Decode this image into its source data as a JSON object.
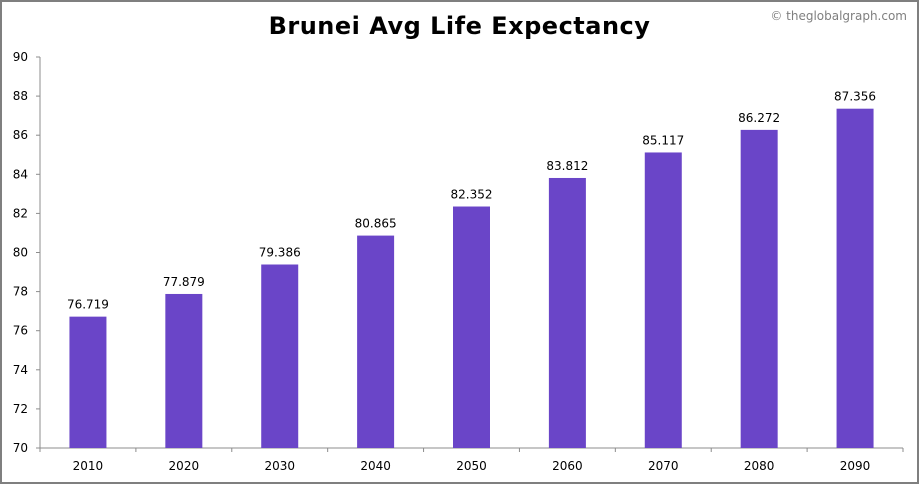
{
  "watermark": "© theglobalgraph.com",
  "chart_data": {
    "type": "bar",
    "title": "Brunei Avg Life Expectancy",
    "xlabel": "",
    "ylabel": "",
    "categories": [
      "2010",
      "2020",
      "2030",
      "2040",
      "2050",
      "2060",
      "2070",
      "2080",
      "2090"
    ],
    "values": [
      76.719,
      77.879,
      79.386,
      80.865,
      82.352,
      83.812,
      85.117,
      86.272,
      87.356
    ],
    "value_labels": [
      "76.719",
      "77.879",
      "79.386",
      "80.865",
      "82.352",
      "83.812",
      "85.117",
      "86.272",
      "87.356"
    ],
    "ylim": [
      70,
      90
    ],
    "yticks": [
      70,
      72,
      74,
      76,
      78,
      80,
      82,
      84,
      86,
      88,
      90
    ],
    "grid": false,
    "bar_color": "#6a45c8"
  }
}
